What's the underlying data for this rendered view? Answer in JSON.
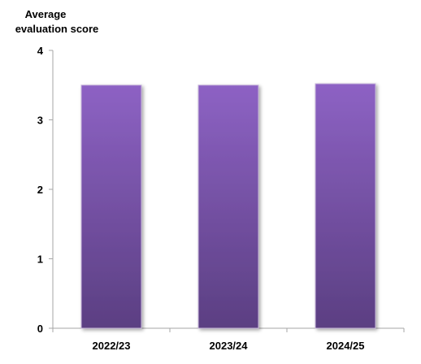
{
  "chart_data": {
    "type": "bar",
    "ylabel_lines": [
      "Average",
      "evaluation score"
    ],
    "categories": [
      "2022/23",
      "2023/24",
      "2024/25"
    ],
    "values": [
      3.5,
      3.5,
      3.52
    ],
    "ylim": [
      0,
      4
    ],
    "yticks": [
      "0",
      "1",
      "2",
      "3",
      "4"
    ],
    "grid": false,
    "bar_color_top": "#8d62c4",
    "bar_color_bottom": "#5b3f82",
    "bar_edge_color": "#c9b8dc"
  }
}
